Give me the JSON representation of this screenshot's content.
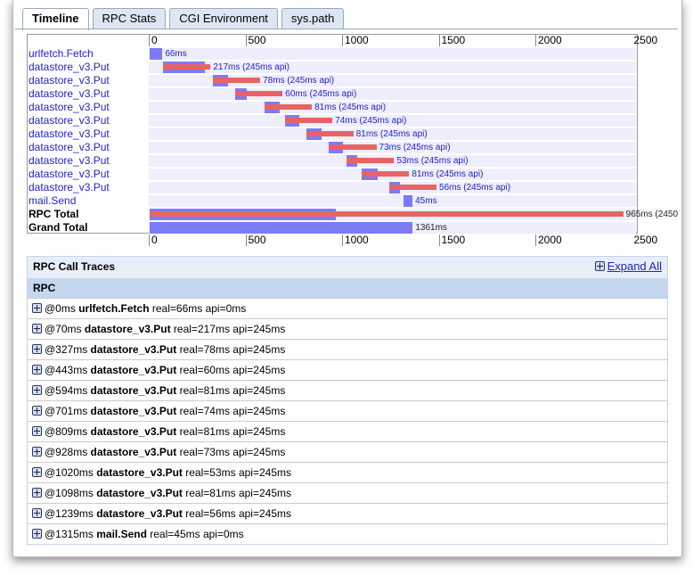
{
  "tabs": [
    {
      "label": "Timeline",
      "active": true
    },
    {
      "label": "RPC Stats"
    },
    {
      "label": "CGI Environment"
    },
    {
      "label": "sys.path"
    }
  ],
  "chart_data": {
    "type": "bar",
    "orientation": "horizontal-timeline",
    "xlim": [
      0,
      2500
    ],
    "ticks": [
      "0",
      "500",
      "1000",
      "1500",
      "2000",
      "2500"
    ],
    "colors": {
      "real": "#7b7bf8",
      "api": "#e86464"
    },
    "rows": [
      {
        "label": "urlfetch.Fetch",
        "start": 0,
        "real": 66,
        "api": 0,
        "text": "66ms"
      },
      {
        "label": "datastore_v3.Put",
        "start": 70,
        "real": 217,
        "api": 245,
        "text": "217ms (245ms api)"
      },
      {
        "label": "datastore_v3.Put",
        "start": 327,
        "real": 78,
        "api": 245,
        "text": "78ms (245ms api)"
      },
      {
        "label": "datastore_v3.Put",
        "start": 443,
        "real": 60,
        "api": 245,
        "text": "60ms (245ms api)"
      },
      {
        "label": "datastore_v3.Put",
        "start": 594,
        "real": 81,
        "api": 245,
        "text": "81ms (245ms api)"
      },
      {
        "label": "datastore_v3.Put",
        "start": 701,
        "real": 74,
        "api": 245,
        "text": "74ms (245ms api)"
      },
      {
        "label": "datastore_v3.Put",
        "start": 809,
        "real": 81,
        "api": 245,
        "text": "81ms (245ms api)"
      },
      {
        "label": "datastore_v3.Put",
        "start": 928,
        "real": 73,
        "api": 245,
        "text": "73ms (245ms api)"
      },
      {
        "label": "datastore_v3.Put",
        "start": 1020,
        "real": 53,
        "api": 245,
        "text": "53ms (245ms api)"
      },
      {
        "label": "datastore_v3.Put",
        "start": 1098,
        "real": 81,
        "api": 245,
        "text": "81ms (245ms api)"
      },
      {
        "label": "datastore_v3.Put",
        "start": 1239,
        "real": 56,
        "api": 245,
        "text": "56ms (245ms api)"
      },
      {
        "label": "mail.Send",
        "start": 1315,
        "real": 45,
        "api": 0,
        "text": "45ms"
      },
      {
        "label": "RPC Total",
        "start": 0,
        "real": 965,
        "api": 2450,
        "text": "965ms (2450",
        "bold": true
      },
      {
        "label": "Grand Total",
        "start": 0,
        "real": 1361,
        "api": 0,
        "text": "1361ms",
        "bold": true
      }
    ]
  },
  "traces": {
    "title": "RPC Call Traces",
    "expand_all": "Expand All",
    "column": "RPC",
    "rows": [
      {
        "at": "@0ms",
        "name": "urlfetch.Fetch",
        "stats": "real=66ms api=0ms"
      },
      {
        "at": "@70ms",
        "name": "datastore_v3.Put",
        "stats": "real=217ms api=245ms"
      },
      {
        "at": "@327ms",
        "name": "datastore_v3.Put",
        "stats": "real=78ms api=245ms"
      },
      {
        "at": "@443ms",
        "name": "datastore_v3.Put",
        "stats": "real=60ms api=245ms"
      },
      {
        "at": "@594ms",
        "name": "datastore_v3.Put",
        "stats": "real=81ms api=245ms"
      },
      {
        "at": "@701ms",
        "name": "datastore_v3.Put",
        "stats": "real=74ms api=245ms"
      },
      {
        "at": "@809ms",
        "name": "datastore_v3.Put",
        "stats": "real=81ms api=245ms"
      },
      {
        "at": "@928ms",
        "name": "datastore_v3.Put",
        "stats": "real=73ms api=245ms"
      },
      {
        "at": "@1020ms",
        "name": "datastore_v3.Put",
        "stats": "real=53ms api=245ms"
      },
      {
        "at": "@1098ms",
        "name": "datastore_v3.Put",
        "stats": "real=81ms api=245ms"
      },
      {
        "at": "@1239ms",
        "name": "datastore_v3.Put",
        "stats": "real=56ms api=245ms"
      },
      {
        "at": "@1315ms",
        "name": "mail.Send",
        "stats": "real=45ms api=0ms"
      }
    ]
  }
}
